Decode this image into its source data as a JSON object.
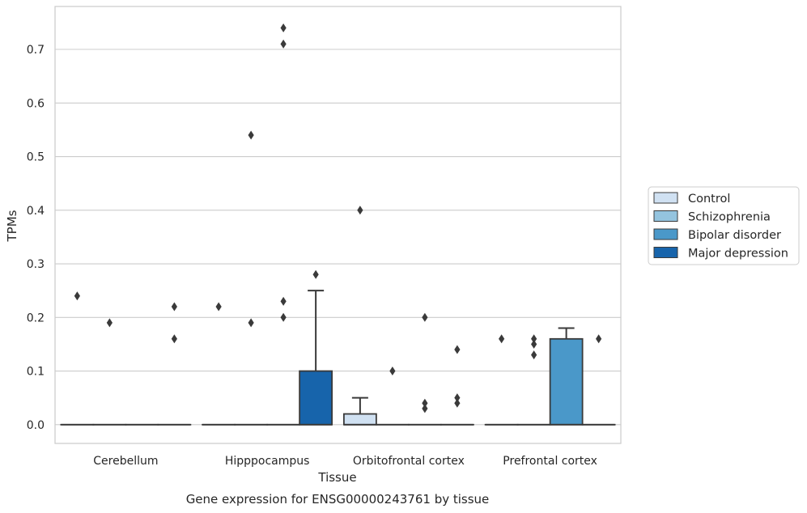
{
  "chart_data": {
    "type": "box",
    "xlabel": "Tissue",
    "ylabel": "TPMs",
    "caption": "Gene expression for ENSG00000243761 by tissue",
    "ylim": [
      -0.035,
      0.78
    ],
    "yticks": [
      "0.0",
      "0.1",
      "0.2",
      "0.3",
      "0.4",
      "0.5",
      "0.6",
      "0.7"
    ],
    "grid": "horizontal",
    "legend_position": "right",
    "categories": [
      "Cerebellum",
      "Hipppocampus",
      "Orbitofrontal cortex",
      "Prefrontal cortex"
    ],
    "series": [
      {
        "name": "Control",
        "color": "#d0e1f2",
        "boxes": [
          {
            "q1": 0,
            "median": 0,
            "q3": 0,
            "whislo": 0,
            "whishi": 0,
            "fliers": [
              0.24
            ]
          },
          {
            "q1": 0,
            "median": 0,
            "q3": 0,
            "whislo": 0,
            "whishi": 0,
            "fliers": [
              0.22
            ]
          },
          {
            "q1": 0,
            "median": 0,
            "q3": 0.02,
            "whislo": 0,
            "whishi": 0.05,
            "fliers": [
              0.4
            ]
          },
          {
            "q1": 0,
            "median": 0,
            "q3": 0,
            "whislo": 0,
            "whishi": 0,
            "fliers": [
              0.16
            ]
          }
        ]
      },
      {
        "name": "Schizophrenia",
        "color": "#94c4df",
        "boxes": [
          {
            "q1": 0,
            "median": 0,
            "q3": 0,
            "whislo": 0,
            "whishi": 0,
            "fliers": [
              0.19
            ]
          },
          {
            "q1": 0,
            "median": 0,
            "q3": 0,
            "whislo": 0,
            "whishi": 0,
            "fliers": [
              0.19,
              0.54
            ]
          },
          {
            "q1": 0,
            "median": 0,
            "q3": 0,
            "whislo": 0,
            "whishi": 0,
            "fliers": [
              0.1
            ]
          },
          {
            "q1": 0,
            "median": 0,
            "q3": 0,
            "whislo": 0,
            "whishi": 0,
            "fliers": [
              0.13,
              0.15,
              0.16
            ]
          }
        ]
      },
      {
        "name": "Bipolar disorder",
        "color": "#4a98c9",
        "boxes": [
          {
            "q1": 0,
            "median": 0,
            "q3": 0,
            "whislo": 0,
            "whishi": 0,
            "fliers": []
          },
          {
            "q1": 0,
            "median": 0,
            "q3": 0,
            "whislo": 0,
            "whishi": 0,
            "fliers": [
              0.2,
              0.23,
              0.71,
              0.74
            ]
          },
          {
            "q1": 0,
            "median": 0,
            "q3": 0,
            "whislo": 0,
            "whishi": 0,
            "fliers": [
              0.03,
              0.04,
              0.2
            ]
          },
          {
            "q1": 0,
            "median": 0,
            "q3": 0.16,
            "whislo": 0,
            "whishi": 0.18,
            "fliers": []
          }
        ]
      },
      {
        "name": "Major depression",
        "color": "#1764ab",
        "boxes": [
          {
            "q1": 0,
            "median": 0,
            "q3": 0,
            "whislo": 0,
            "whishi": 0,
            "fliers": [
              0.16,
              0.22
            ]
          },
          {
            "q1": 0,
            "median": 0,
            "q3": 0.1,
            "whislo": 0,
            "whishi": 0.25,
            "fliers": [
              0.28
            ]
          },
          {
            "q1": 0,
            "median": 0,
            "q3": 0,
            "whislo": 0,
            "whishi": 0,
            "fliers": [
              0.04,
              0.05,
              0.14
            ]
          },
          {
            "q1": 0,
            "median": 0,
            "q3": 0,
            "whislo": 0,
            "whishi": 0,
            "fliers": [
              0.16
            ]
          }
        ]
      }
    ]
  }
}
